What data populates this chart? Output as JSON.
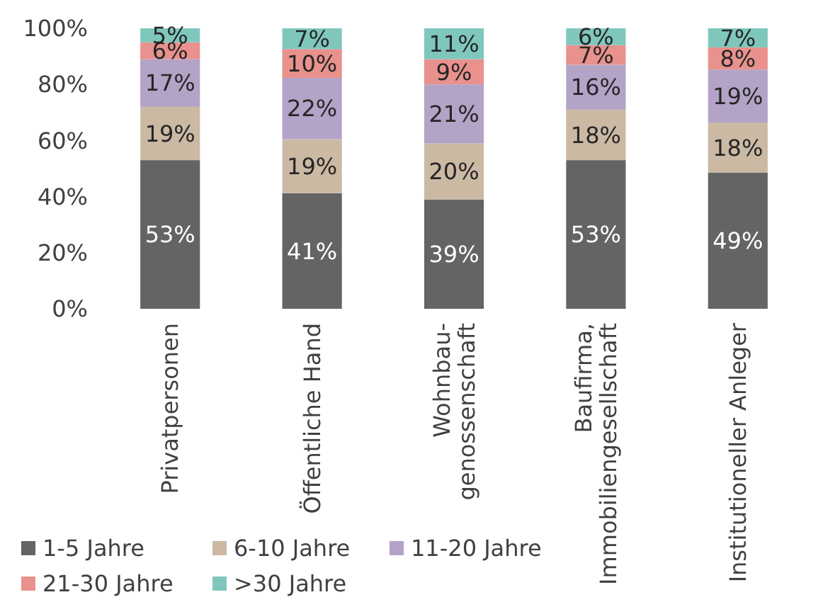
{
  "chart_data": {
    "type": "bar",
    "stacked": true,
    "categories": [
      "Privatpersonen",
      "Öffentliche Hand",
      "Wohnbau-\ngenossenschaft",
      "Baufirma,\nImmobiliengesellschaft",
      "Institutioneller Anleger"
    ],
    "series": [
      {
        "name": "1-5 Jahre",
        "color": "#646464",
        "values": [
          53,
          41.2,
          39,
          53,
          48.6
        ],
        "value_labels": [
          "53%",
          "41%",
          "39%",
          "53%",
          "49%"
        ]
      },
      {
        "name": "6-10 Jahre",
        "color": "#cbb9a4",
        "values": [
          19,
          19.3,
          20,
          18,
          17.8
        ],
        "value_labels": [
          "19%",
          "19%",
          "20%",
          "18%",
          "18%"
        ]
      },
      {
        "name": "11-20 Jahre",
        "color": "#b3a3c7",
        "values": [
          17,
          21.8,
          21,
          16,
          18.9
        ],
        "value_labels": [
          "17%",
          "22%",
          "21%",
          "16%",
          "19%"
        ]
      },
      {
        "name": "21-30 Jahre",
        "color": "#e8918d",
        "values": [
          6,
          10.3,
          9,
          7,
          7.9
        ],
        "value_labels": [
          "6%",
          "10%",
          "9%",
          "7%",
          "8%"
        ]
      },
      {
        "name": ">30 Jahre",
        "color": "#7fc7bd",
        "values": [
          5,
          7.4,
          11,
          6,
          6.8
        ],
        "value_labels": [
          "5%",
          "7%",
          "11%",
          "6%",
          "7%"
        ]
      }
    ],
    "ylim": [
      0,
      100
    ],
    "yticks": [
      {
        "value": 0,
        "label": "0%"
      },
      {
        "value": 20,
        "label": "20%"
      },
      {
        "value": 40,
        "label": "40%"
      },
      {
        "value": 60,
        "label": "60%"
      },
      {
        "value": 80,
        "label": "80%"
      },
      {
        "value": 100,
        "label": "100%"
      }
    ],
    "grid": false,
    "legend": "bottom"
  }
}
